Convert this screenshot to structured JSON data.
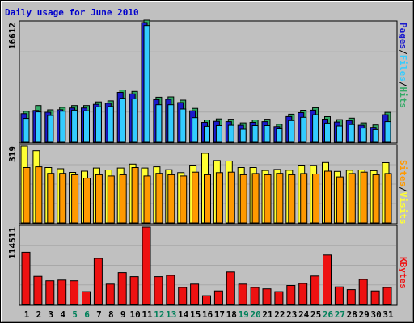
{
  "title": "Daily usage for June 2010",
  "colors": {
    "background": "#c0c0c0",
    "grid": "#a8a8a8",
    "title_text": "#0000cc",
    "weekday_text": "#000000",
    "weekend_text": "#00805a",
    "pages": "#1a1acc",
    "files": "#33ccff",
    "hits": "#33aa66",
    "visits": "#ffff33",
    "sites": "#ff9900",
    "kbytes": "#ee1111"
  },
  "chart_data": {
    "type": "bar",
    "title": "Daily usage for June 2010",
    "x": [
      1,
      2,
      3,
      4,
      5,
      6,
      7,
      8,
      9,
      10,
      11,
      12,
      13,
      14,
      15,
      16,
      17,
      18,
      19,
      20,
      21,
      22,
      23,
      24,
      25,
      26,
      27,
      28,
      29,
      30,
      31
    ],
    "day_labels": [
      "1",
      "2",
      "3",
      "4",
      "5",
      "6",
      "7",
      "8",
      "9",
      "10",
      "11",
      "12",
      "13",
      "14",
      "15",
      "16",
      "17",
      "18",
      "19",
      "20",
      "21",
      "22",
      "23",
      "24",
      "25",
      "26",
      "27",
      "28",
      "29",
      "30",
      "31"
    ],
    "weekend_days": [
      5,
      6,
      12,
      13,
      19,
      20,
      26,
      27
    ],
    "panels": [
      {
        "name": "hits_files_pages",
        "max_label": "16612",
        "ymax": 16612,
        "legend": [
          {
            "label": "Pages",
            "color_key": "pages"
          },
          {
            "label": "/",
            "color_key": "weekday_text"
          },
          {
            "label": "Files",
            "color_key": "files"
          },
          {
            "label": "/",
            "color_key": "weekday_text"
          },
          {
            "label": "Hits",
            "color_key": "hits"
          }
        ],
        "series": [
          {
            "name": "Hits",
            "color_key": "hits",
            "values": [
              3950,
              4750,
              4150,
              4500,
              4750,
              4750,
              5250,
              5400,
              6900,
              6700,
              16612,
              5900,
              5950,
              5500,
              4350,
              2750,
              2900,
              2850,
              2350,
              2750,
              2850,
              2150,
              3550,
              4100,
              4450,
              3200,
              2800,
              3000,
              2350,
              2050,
              3800
            ]
          },
          {
            "name": "Pages",
            "color_key": "pages",
            "values": [
              3950,
              4400,
              4150,
              4500,
              4750,
              4750,
              5250,
              5400,
              6900,
              6700,
              16612,
              5900,
              5950,
              5500,
              4350,
              2750,
              2900,
              2850,
              2350,
              2750,
              2850,
              2150,
              3550,
              4100,
              4450,
              3200,
              2800,
              3000,
              2350,
              2050,
              3800
            ]
          },
          {
            "name": "Files",
            "color_key": "files",
            "values": [
              3300,
              4200,
              3700,
              4300,
              4450,
              4350,
              4900,
              4950,
              6100,
              6000,
              16200,
              5200,
              5200,
              4600,
              3400,
              2200,
              2300,
              2350,
              1800,
              2300,
              2300,
              1850,
              3000,
              3450,
              3800,
              2650,
              2250,
              2450,
              1950,
              1750,
              2850
            ]
          }
        ]
      },
      {
        "name": "visits_sites",
        "max_label": "319",
        "ymax": 319,
        "legend": [
          {
            "label": "Sites",
            "color_key": "sites"
          },
          {
            "label": "/",
            "color_key": "weekday_text"
          },
          {
            "label": "Visits",
            "color_key": "visits"
          }
        ],
        "series": [
          {
            "name": "Visits",
            "color_key": "visits",
            "values": [
              319,
              300,
              230,
              225,
              210,
              215,
              228,
              220,
              228,
              244,
              228,
              233,
              221,
              209,
              240,
              289,
              259,
              257,
              230,
              230,
              218,
              222,
              219,
              240,
              239,
              251,
              214,
              219,
              220,
              217,
              250
            ]
          },
          {
            "name": "Sites",
            "color_key": "sites",
            "values": [
              230,
              233,
              206,
              206,
              200,
              186,
              200,
              195,
              200,
              230,
              195,
              206,
              200,
              195,
              211,
              200,
              209,
              211,
              200,
              205,
              200,
              206,
              200,
              205,
              203,
              215,
              191,
              205,
              211,
              200,
              205
            ]
          }
        ]
      },
      {
        "name": "kbytes",
        "max_label": "114511",
        "ymax": 114511,
        "legend": [
          {
            "label": "KBytes",
            "color_key": "kbytes"
          }
        ],
        "series": [
          {
            "name": "KBytes",
            "color_key": "kbytes",
            "values": [
              77000,
              41500,
              35000,
              36000,
              35000,
              19000,
              68000,
              30000,
              47000,
              41000,
              114511,
              41000,
              43000,
              25000,
              30000,
              13000,
              20000,
              48000,
              30000,
              25000,
              23000,
              19000,
              28000,
              31000,
              42000,
              73000,
              26000,
              22000,
              37000,
              20000,
              25000
            ]
          }
        ]
      }
    ]
  }
}
